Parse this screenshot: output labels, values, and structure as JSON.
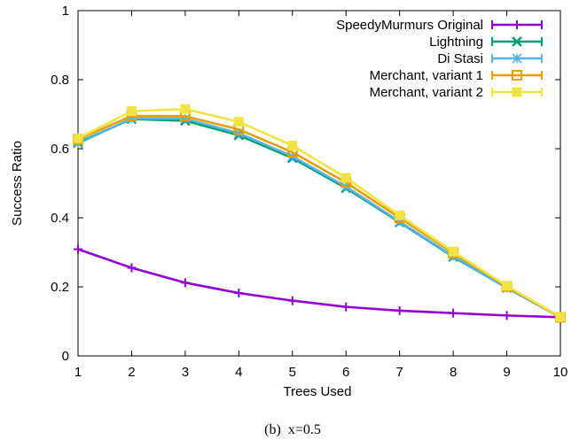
{
  "chart_data": {
    "type": "line",
    "xlabel": "Trees Used",
    "ylabel": "Success Ratio",
    "xlim": [
      1,
      10
    ],
    "ylim": [
      0,
      1
    ],
    "x_ticks": [
      "1",
      "2",
      "3",
      "4",
      "5",
      "6",
      "7",
      "8",
      "9",
      "10"
    ],
    "y_ticks": [
      "0",
      "0.2",
      "0.4",
      "0.6",
      "0.8",
      "1"
    ],
    "legend_position": "top-right",
    "grid": false,
    "x": [
      1,
      2,
      3,
      4,
      5,
      6,
      7,
      8,
      9,
      10
    ],
    "series": [
      {
        "name": "SpeedyMurmurs Original",
        "color": "#9400d3",
        "marker": "plus",
        "values": [
          0.309,
          0.255,
          0.212,
          0.182,
          0.16,
          0.142,
          0.131,
          0.124,
          0.117,
          0.112
        ]
      },
      {
        "name": "Lightning",
        "color": "#009e73",
        "marker": "cross",
        "values": [
          0.618,
          0.686,
          0.681,
          0.639,
          0.573,
          0.486,
          0.387,
          0.287,
          0.197,
          0.112
        ]
      },
      {
        "name": "Di Stasi",
        "color": "#56b4e9",
        "marker": "asterisk",
        "values": [
          0.615,
          0.688,
          0.687,
          0.645,
          0.578,
          0.49,
          0.389,
          0.289,
          0.197,
          0.112
        ]
      },
      {
        "name": "Merchant, variant 1",
        "color": "#e69f00",
        "marker": "square-open",
        "values": [
          0.627,
          0.695,
          0.694,
          0.656,
          0.59,
          0.502,
          0.4,
          0.298,
          0.201,
          0.112
        ]
      },
      {
        "name": "Merchant, variant 2",
        "color": "#f0e442",
        "marker": "square-filled",
        "values": [
          0.63,
          0.709,
          0.715,
          0.678,
          0.609,
          0.516,
          0.407,
          0.302,
          0.203,
          0.113
        ]
      }
    ]
  },
  "caption": "(b)  x=0.5"
}
